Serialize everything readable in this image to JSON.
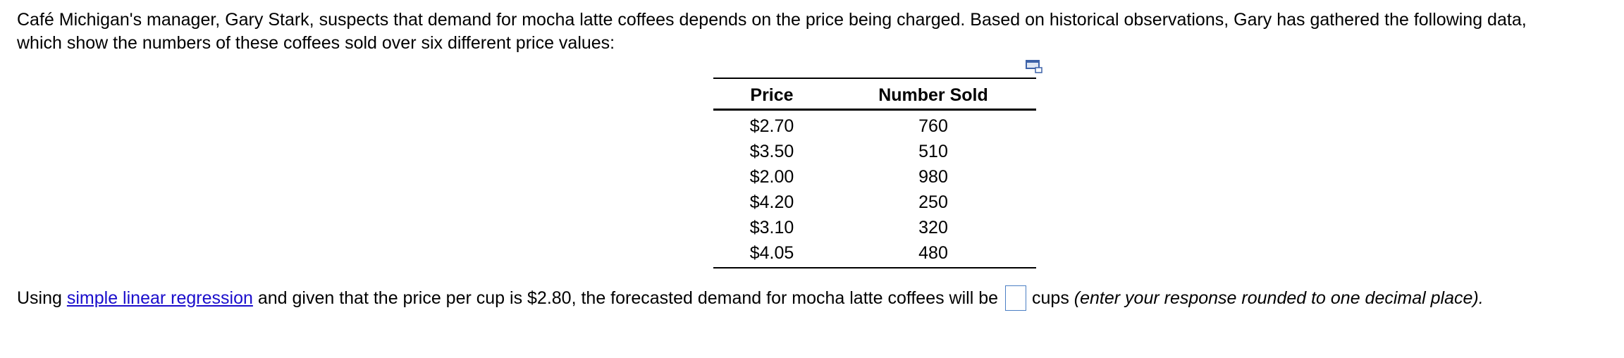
{
  "problem": {
    "intro_line1": "Café Michigan's manager, Gary Stark, suspects that demand for mocha latte coffees depends on the price being charged.  Based on historical observations, Gary has gathered the following data,",
    "intro_line2": "which show the numbers of these coffees sold over six different price values:"
  },
  "table": {
    "headers": [
      "Price",
      "Number Sold"
    ],
    "rows": [
      [
        "$2.70",
        "760"
      ],
      [
        "$3.50",
        "510"
      ],
      [
        "$2.00",
        "980"
      ],
      [
        "$4.20",
        "250"
      ],
      [
        "$3.10",
        "320"
      ],
      [
        "$4.05",
        "480"
      ]
    ],
    "copy_icon": "copy-table-icon"
  },
  "question": {
    "prefix": "Using ",
    "link_text": "simple linear regression",
    "middle": " and given that the price per cup is $2.80, the forecasted demand for mocha latte coffees will be",
    "answer_value": "",
    "unit": "cups ",
    "note": "(enter your response rounded to one decimal place)."
  }
}
